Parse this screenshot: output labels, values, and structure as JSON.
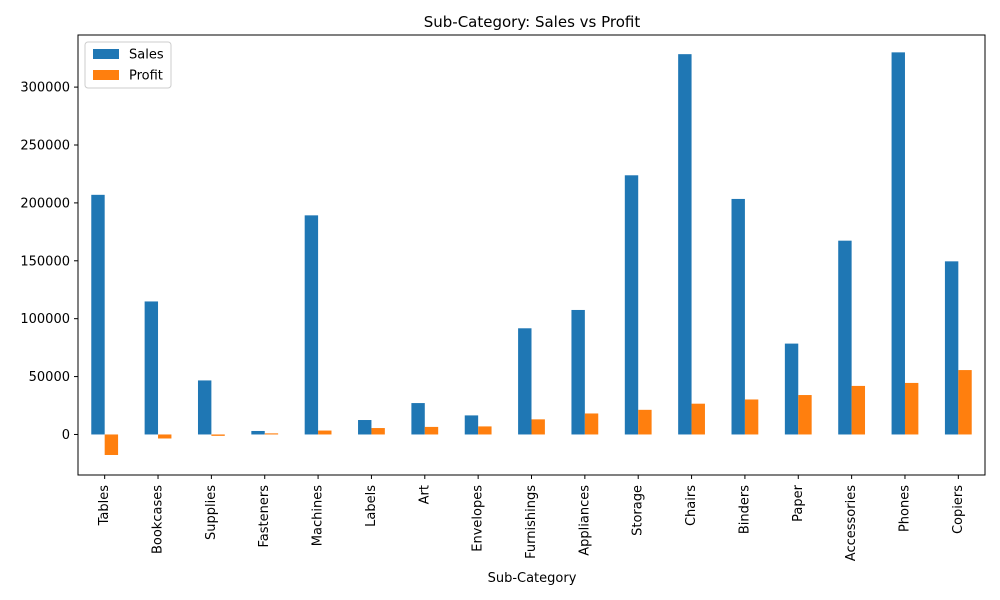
{
  "chart_data": {
    "type": "bar",
    "title": "Sub-Category: Sales vs Profit",
    "xlabel": "Sub-Category",
    "ylabel": "",
    "ylim": [
      -35000,
      345000
    ],
    "yticks": [
      0,
      50000,
      100000,
      150000,
      200000,
      250000,
      300000
    ],
    "grid": false,
    "legend_position": "top-left",
    "categories": [
      "Tables",
      "Bookcases",
      "Supplies",
      "Fasteners",
      "Machines",
      "Labels",
      "Art",
      "Envelopes",
      "Furnishings",
      "Appliances",
      "Storage",
      "Chairs",
      "Binders",
      "Paper",
      "Accessories",
      "Phones",
      "Copiers"
    ],
    "series": [
      {
        "name": "Sales",
        "color": "#1f77b4",
        "values": [
          206966,
          114880,
          46674,
          3024,
          189239,
          12486,
          27119,
          16476,
          91705,
          107532,
          223844,
          328449,
          203413,
          78479,
          167380,
          330007,
          149528
        ]
      },
      {
        "name": "Profit",
        "color": "#ff7f0e",
        "values": [
          -17725,
          -3473,
          -1189,
          950,
          3385,
          5546,
          6528,
          6964,
          13059,
          18138,
          21279,
          26590,
          30222,
          34054,
          41937,
          44516,
          55618
        ]
      }
    ]
  }
}
